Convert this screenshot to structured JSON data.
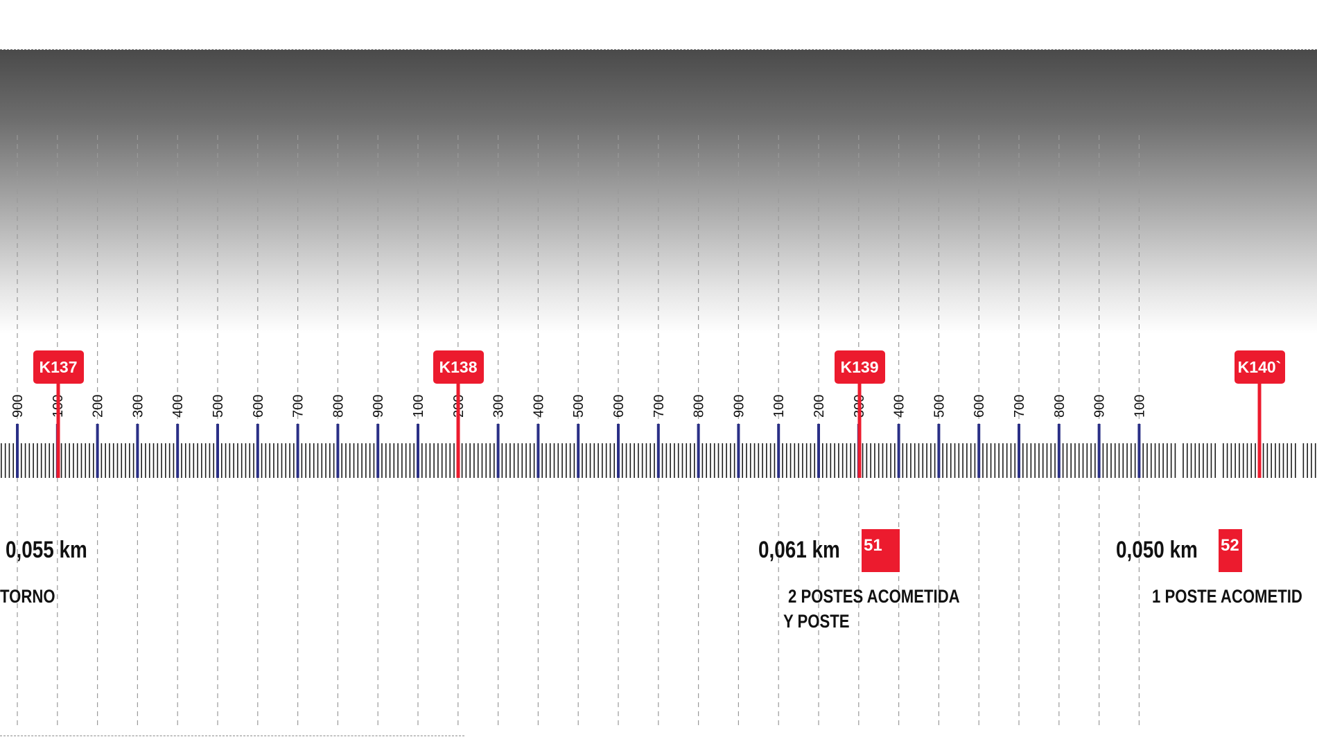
{
  "scale": {
    "tick_labels": [
      "900",
      "100",
      "200",
      "300",
      "400",
      "500",
      "600",
      "700",
      "800",
      "900",
      "100",
      "200",
      "300",
      "400",
      "500",
      "600",
      "700",
      "800",
      "900",
      "100",
      "200",
      "300",
      "400",
      "500",
      "600",
      "700",
      "800",
      "900",
      "100"
    ],
    "km_markers": [
      "K137",
      "K138",
      "K139",
      "K140`"
    ]
  },
  "segments": [
    {
      "distance": "0,055 km",
      "note_lines": [
        "TORNO"
      ],
      "badge": ""
    },
    {
      "distance": "0,061 km",
      "note_lines": [
        "2 POSTES ACOMETIDA",
        "Y POSTE"
      ],
      "badge": "51"
    },
    {
      "distance": "0,050 km",
      "note_lines": [
        "1 POSTE ACOMETID"
      ],
      "badge": "52"
    }
  ],
  "colors": {
    "marker_red": "#ec1b2e",
    "major_tick_blue": "#2a2f86",
    "minor_tick": "#1a1a1a",
    "guide_dash": "#9a9a9a"
  }
}
